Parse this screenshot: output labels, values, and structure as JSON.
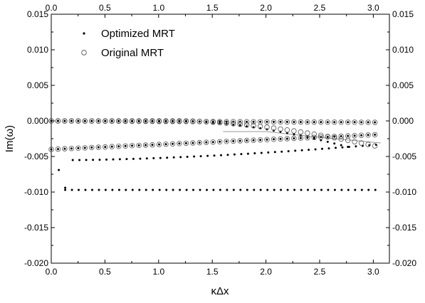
{
  "chart_data": {
    "type": "scatter",
    "xlabel": "κΔx",
    "ylabel": "Im(ω)",
    "xlim": [
      0,
      3.15
    ],
    "ylim": [
      -0.02,
      0.015
    ],
    "x_ticks": [
      "0.0",
      "0.5",
      "1.0",
      "1.5",
      "2.0",
      "2.5",
      "3.0"
    ],
    "y_ticks": [
      "0.015",
      "0.010",
      "0.005",
      "0.000",
      "-0.005",
      "-0.010",
      "-0.015",
      "-0.020"
    ],
    "x_tick_values": [
      0,
      0.5,
      1.0,
      1.5,
      2.0,
      2.5,
      3.0
    ],
    "y_tick_values": [
      0.015,
      0.01,
      0.005,
      0.0,
      -0.005,
      -0.01,
      -0.015,
      -0.02
    ],
    "legend": {
      "placement": "top-left",
      "entries": [
        {
          "label": "Optimized MRT",
          "marker": "filled-dot"
        },
        {
          "label": "Original MRT",
          "marker": "open-circle"
        }
      ]
    },
    "series": [
      {
        "name": "Optimized MRT",
        "marker": "filled-dot",
        "branches": [
          {
            "x_start": 0.0,
            "x_end": 3.07,
            "y_start": 0.0,
            "y_end": -0.0002,
            "curve": "flat"
          },
          {
            "x_start": 0.0,
            "x_end": 2.8,
            "y_start": 0.0,
            "y_end": -0.0038,
            "curve": "bend_down_after_1.5"
          },
          {
            "x_start": 0.0,
            "x_end": 3.07,
            "y_start": -0.004,
            "y_end": -0.0019,
            "curve": "linear"
          },
          {
            "x_start": 0.2,
            "x_end": 3.07,
            "y_start": -0.0055,
            "y_end": -0.0033,
            "curve": "rising"
          },
          {
            "x_start": 0.13,
            "x_end": 3.07,
            "y_start": -0.0097,
            "y_end": -0.0097,
            "curve": "flat"
          }
        ],
        "outliers": [
          {
            "x": 0.07,
            "y": -0.0069
          },
          {
            "x": 0.13,
            "y": -0.0094
          }
        ]
      },
      {
        "name": "Original MRT",
        "marker": "open-circle",
        "branches": [
          {
            "x_start": 0.0,
            "x_end": 3.07,
            "y_start": 0.0,
            "y_end": -0.0002,
            "curve": "flat"
          },
          {
            "x_start": 0.0,
            "x_end": 3.07,
            "y_start": 0.0,
            "y_end": -0.0037,
            "curve": "bend_down_after_1.5"
          },
          {
            "x_start": 0.0,
            "x_end": 3.07,
            "y_start": -0.004,
            "y_end": -0.0019,
            "curve": "linear"
          }
        ]
      }
    ],
    "grey_line": {
      "x": [
        1.6,
        2.0,
        2.5,
        3.07
      ],
      "y": [
        -0.0015,
        -0.0015,
        -0.0023,
        -0.0031
      ]
    },
    "grid": false
  }
}
